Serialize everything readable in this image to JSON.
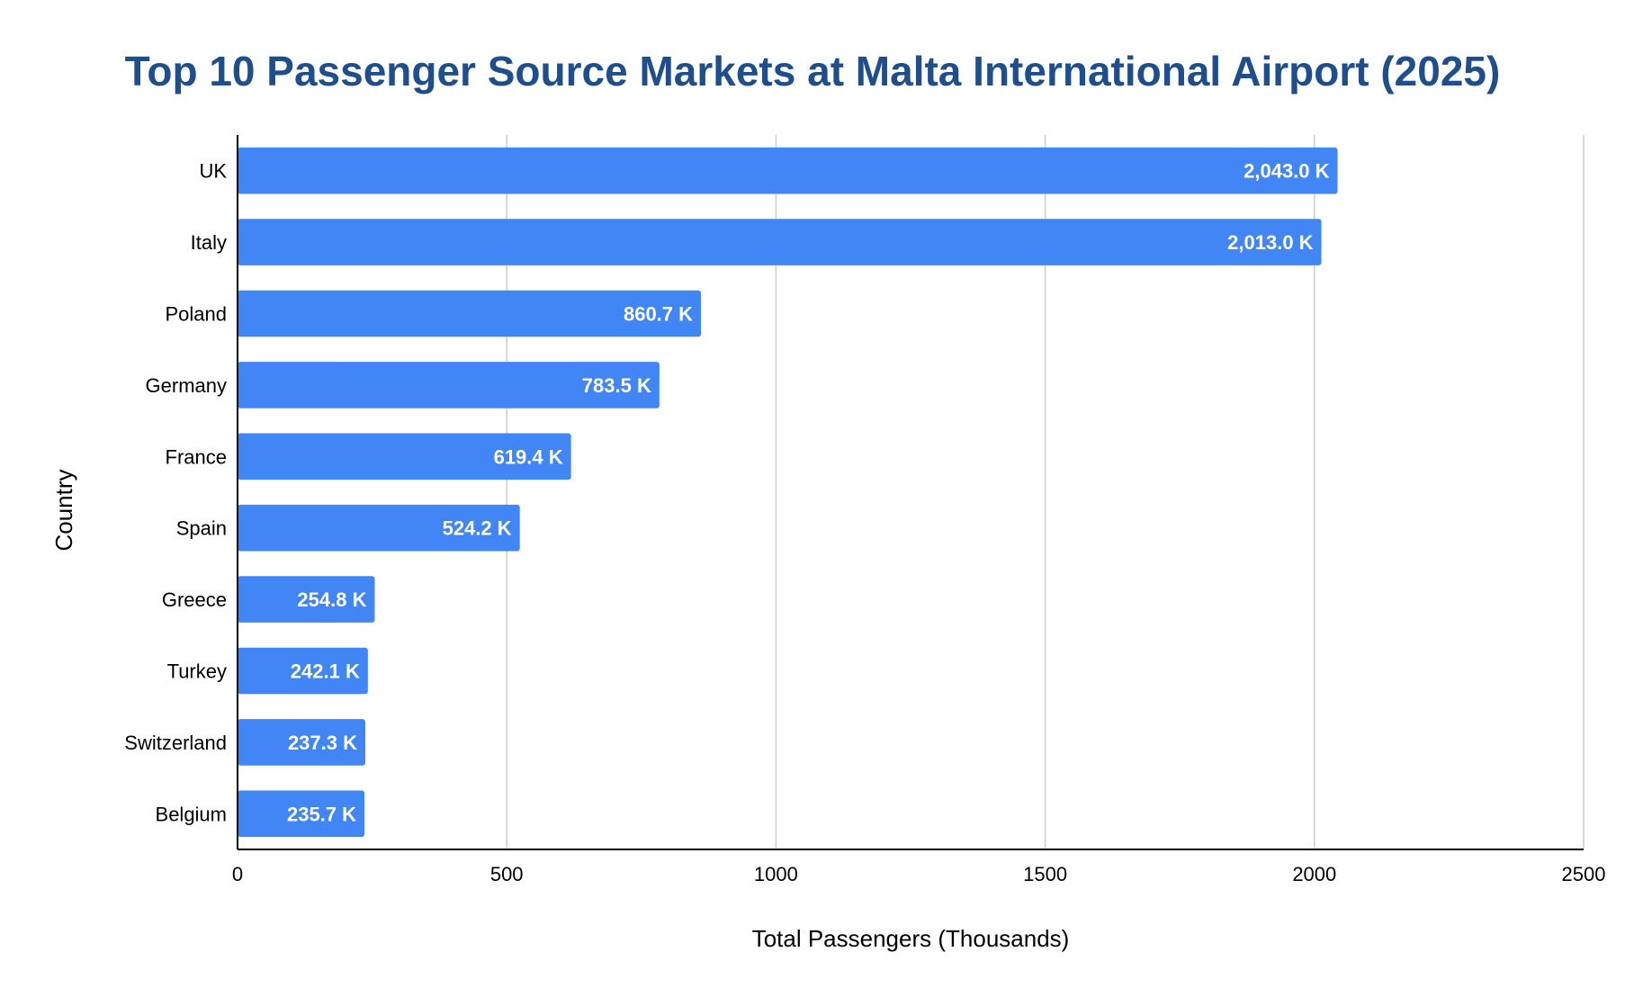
{
  "chart_data": {
    "type": "bar",
    "orientation": "horizontal",
    "title": "Top 10 Passenger Source Markets at Malta International Airport (2025)",
    "xlabel": "Total Passengers (Thousands)",
    "ylabel": "Country",
    "xlim": [
      0,
      2500
    ],
    "xticks": [
      "0",
      "500",
      "1000",
      "1500",
      "2000",
      "2500"
    ],
    "xtick_values": [
      0,
      500,
      1000,
      1500,
      2000,
      2500
    ],
    "categories": [
      "UK",
      "Italy",
      "Poland",
      "Germany",
      "France",
      "Spain",
      "Greece",
      "Turkey",
      "Switzerland",
      "Belgium"
    ],
    "values": [
      2043.0,
      2013.0,
      860.7,
      783.5,
      619.4,
      524.2,
      254.8,
      242.1,
      237.3,
      235.7
    ],
    "data_labels": [
      "2,043.0 K",
      "2,013.0 K",
      "860.7 K",
      "783.5 K",
      "619.4 K",
      "524.2 K",
      "254.8 K",
      "242.1 K",
      "237.3 K",
      "235.7 K"
    ],
    "grid": "vertical",
    "legend": "none",
    "colors": {
      "bar": "#4285f4",
      "title": "#1f4e8c",
      "grid": "#cccccc",
      "axis": "#000000"
    }
  }
}
